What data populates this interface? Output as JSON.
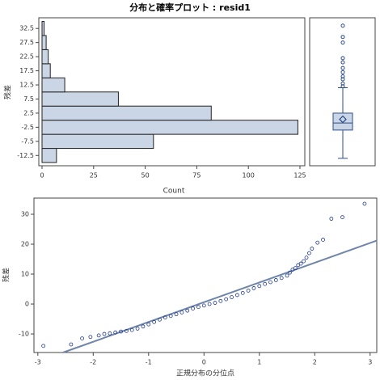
{
  "chart_data": [
    {
      "type": "hbar-histogram",
      "title": "分布と確率プロット : resid1",
      "xlabel": "Count",
      "ylabel": "残差",
      "bins": [
        -15,
        -10,
        -5,
        0,
        5,
        10,
        15,
        20,
        25,
        30,
        35
      ],
      "values": [
        7,
        54,
        124,
        82,
        37,
        11,
        4,
        3,
        2,
        1
      ],
      "color": "#cad5e5",
      "xlim": [
        0,
        125
      ],
      "xticks": [
        0,
        25,
        50,
        75,
        100,
        125
      ],
      "ylim": [
        -16,
        36
      ],
      "yticks": [
        -12.5,
        -7.5,
        -2.5,
        2.5,
        7.5,
        12.5,
        17.5,
        22.5,
        27.5,
        32.5
      ]
    },
    {
      "type": "boxplot",
      "ylim": [
        -16,
        36
      ],
      "color": "#cad5e5",
      "whisker_low": -13.5,
      "q1": -3.5,
      "median": -1,
      "q3": 2.5,
      "whisker_high": 11.5,
      "mean": 0.3,
      "outliers": [
        12,
        13,
        14.5,
        15.5,
        17,
        18.5,
        20.5,
        22,
        27.5,
        29.5,
        33.5
      ]
    },
    {
      "type": "qqplot",
      "xlabel": "正規分布の分位点",
      "ylabel": "残差",
      "xlim": [
        -3.07,
        3.12
      ],
      "xticks": [
        -3,
        -2,
        -1,
        0,
        1,
        2,
        3
      ],
      "ylim": [
        -16.2,
        35.4
      ],
      "yticks": [
        -10,
        0,
        10,
        20,
        30
      ],
      "line": {
        "intercept": 0.6,
        "slope": 6.6,
        "color": "#6f86a8"
      },
      "color": "#1f3a93",
      "x": [
        -2.9,
        -2.4,
        -2.2,
        -2.05,
        -1.9,
        -1.8,
        -1.7,
        -1.6,
        -1.5,
        -1.4,
        -1.3,
        -1.2,
        -1.1,
        -1.0,
        -0.9,
        -0.8,
        -0.7,
        -0.6,
        -0.5,
        -0.4,
        -0.3,
        -0.2,
        -0.1,
        0,
        0.1,
        0.2,
        0.3,
        0.4,
        0.5,
        0.6,
        0.7,
        0.8,
        0.9,
        1.0,
        1.1,
        1.2,
        1.3,
        1.4,
        1.5,
        1.55,
        1.6,
        1.65,
        1.7,
        1.75,
        1.8,
        1.85,
        1.9,
        1.95,
        2.05,
        2.15,
        2.3,
        2.5,
        2.9
      ],
      "values": [
        -14,
        -13.5,
        -11.5,
        -11,
        -10.5,
        -10,
        -9.8,
        -9.5,
        -9.2,
        -9,
        -8.7,
        -8.2,
        -7.5,
        -6.8,
        -6,
        -5.2,
        -4.5,
        -4,
        -3.4,
        -2.8,
        -2.2,
        -1.5,
        -1,
        -0.5,
        0,
        0.4,
        1,
        1.6,
        2.3,
        3,
        3.7,
        4.5,
        5.3,
        6,
        6.7,
        7.3,
        8,
        8.7,
        9.5,
        10.5,
        11.5,
        12,
        13,
        13.5,
        14.3,
        15.5,
        17,
        18.5,
        20.5,
        21.5,
        28.5,
        29,
        33.5
      ]
    }
  ]
}
